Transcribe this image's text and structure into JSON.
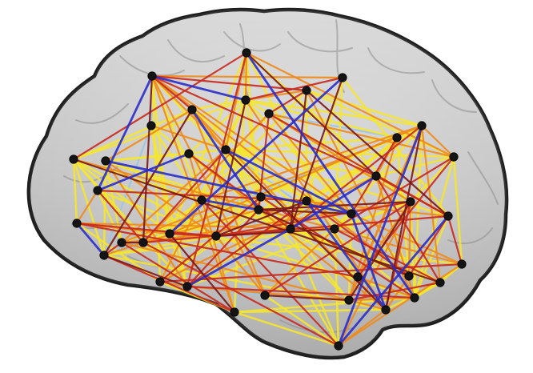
{
  "figure": {
    "title": ""
  },
  "palette": {
    "yellow": "#f6e62a",
    "orange": "#f08a1a",
    "red": "#c8281e",
    "darkred": "#7a1616",
    "blue": "#2a2ec8",
    "lightblue": "#9cc4e6",
    "node": "#141414",
    "brain_fill": "#bdbdbd",
    "brain_outline": "#1e1e1e"
  },
  "network": {
    "node_count": 44,
    "edge_classes": [
      "yellow",
      "orange",
      "red",
      "darkred",
      "blue",
      "lightblue"
    ]
  }
}
